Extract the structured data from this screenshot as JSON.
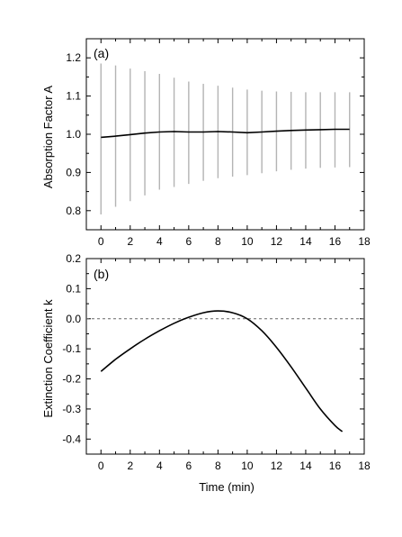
{
  "chart_data": [
    {
      "type": "line",
      "panel_label": "(a)",
      "ylabel": "Absorption Factor A",
      "xlabel": "",
      "xlim": [
        -1,
        18
      ],
      "ylim": [
        0.75,
        1.25
      ],
      "xticks": [
        0,
        2,
        4,
        6,
        8,
        10,
        12,
        14,
        16,
        18
      ],
      "yticks": [
        0.8,
        0.9,
        1.0,
        1.1,
        1.2
      ],
      "xtick_labels": [
        "0",
        "2",
        "4",
        "6",
        "8",
        "10",
        "12",
        "14",
        "16",
        "18"
      ],
      "ytick_labels": [
        "0.8",
        "0.9",
        "1.0",
        "1.1",
        "1.2"
      ],
      "grid": false,
      "series": [
        {
          "x": [
            0,
            1,
            2,
            3,
            4,
            5,
            6,
            7,
            8,
            9,
            10,
            11,
            12,
            13,
            14,
            15,
            16,
            17
          ],
          "values": [
            0.992,
            0.995,
            0.999,
            1.003,
            1.006,
            1.007,
            1.006,
            1.006,
            1.007,
            1.006,
            1.004,
            1.006,
            1.008,
            1.01,
            1.011,
            1.012,
            1.013,
            1.013
          ],
          "error_low": [
            0.79,
            0.81,
            0.825,
            0.84,
            0.855,
            0.862,
            0.87,
            0.878,
            0.885,
            0.889,
            0.893,
            0.898,
            0.903,
            0.907,
            0.91,
            0.912,
            0.913,
            0.914
          ],
          "error_high": [
            1.185,
            1.18,
            1.172,
            1.165,
            1.158,
            1.148,
            1.138,
            1.132,
            1.127,
            1.122,
            1.117,
            1.114,
            1.112,
            1.111,
            1.11,
            1.11,
            1.11,
            1.11
          ]
        }
      ]
    },
    {
      "type": "line",
      "panel_label": "(b)",
      "ylabel": "Extinction Coefficient k",
      "xlabel": "Time (min)",
      "xlim": [
        -1,
        18
      ],
      "ylim": [
        -0.45,
        0.2
      ],
      "xticks": [
        0,
        2,
        4,
        6,
        8,
        10,
        12,
        14,
        16,
        18
      ],
      "yticks": [
        -0.4,
        -0.3,
        -0.2,
        -0.1,
        0.0,
        0.1,
        0.2
      ],
      "xtick_labels": [
        "0",
        "2",
        "4",
        "6",
        "8",
        "10",
        "12",
        "14",
        "16",
        "18"
      ],
      "ytick_labels": [
        "-0.4",
        "-0.3",
        "-0.2",
        "-0.1",
        "0.0",
        "0.1",
        "0.2"
      ],
      "grid": false,
      "reference_line_y": 0.0,
      "series": [
        {
          "x": [
            0,
            1,
            2,
            3,
            4,
            5,
            6,
            7,
            8,
            9,
            10,
            11,
            12,
            13,
            14,
            15,
            16,
            16.5
          ],
          "values": [
            -0.175,
            -0.135,
            -0.1,
            -0.068,
            -0.04,
            -0.015,
            0.005,
            0.02,
            0.026,
            0.02,
            0.0,
            -0.04,
            -0.095,
            -0.16,
            -0.23,
            -0.3,
            -0.355,
            -0.375
          ]
        }
      ]
    }
  ]
}
